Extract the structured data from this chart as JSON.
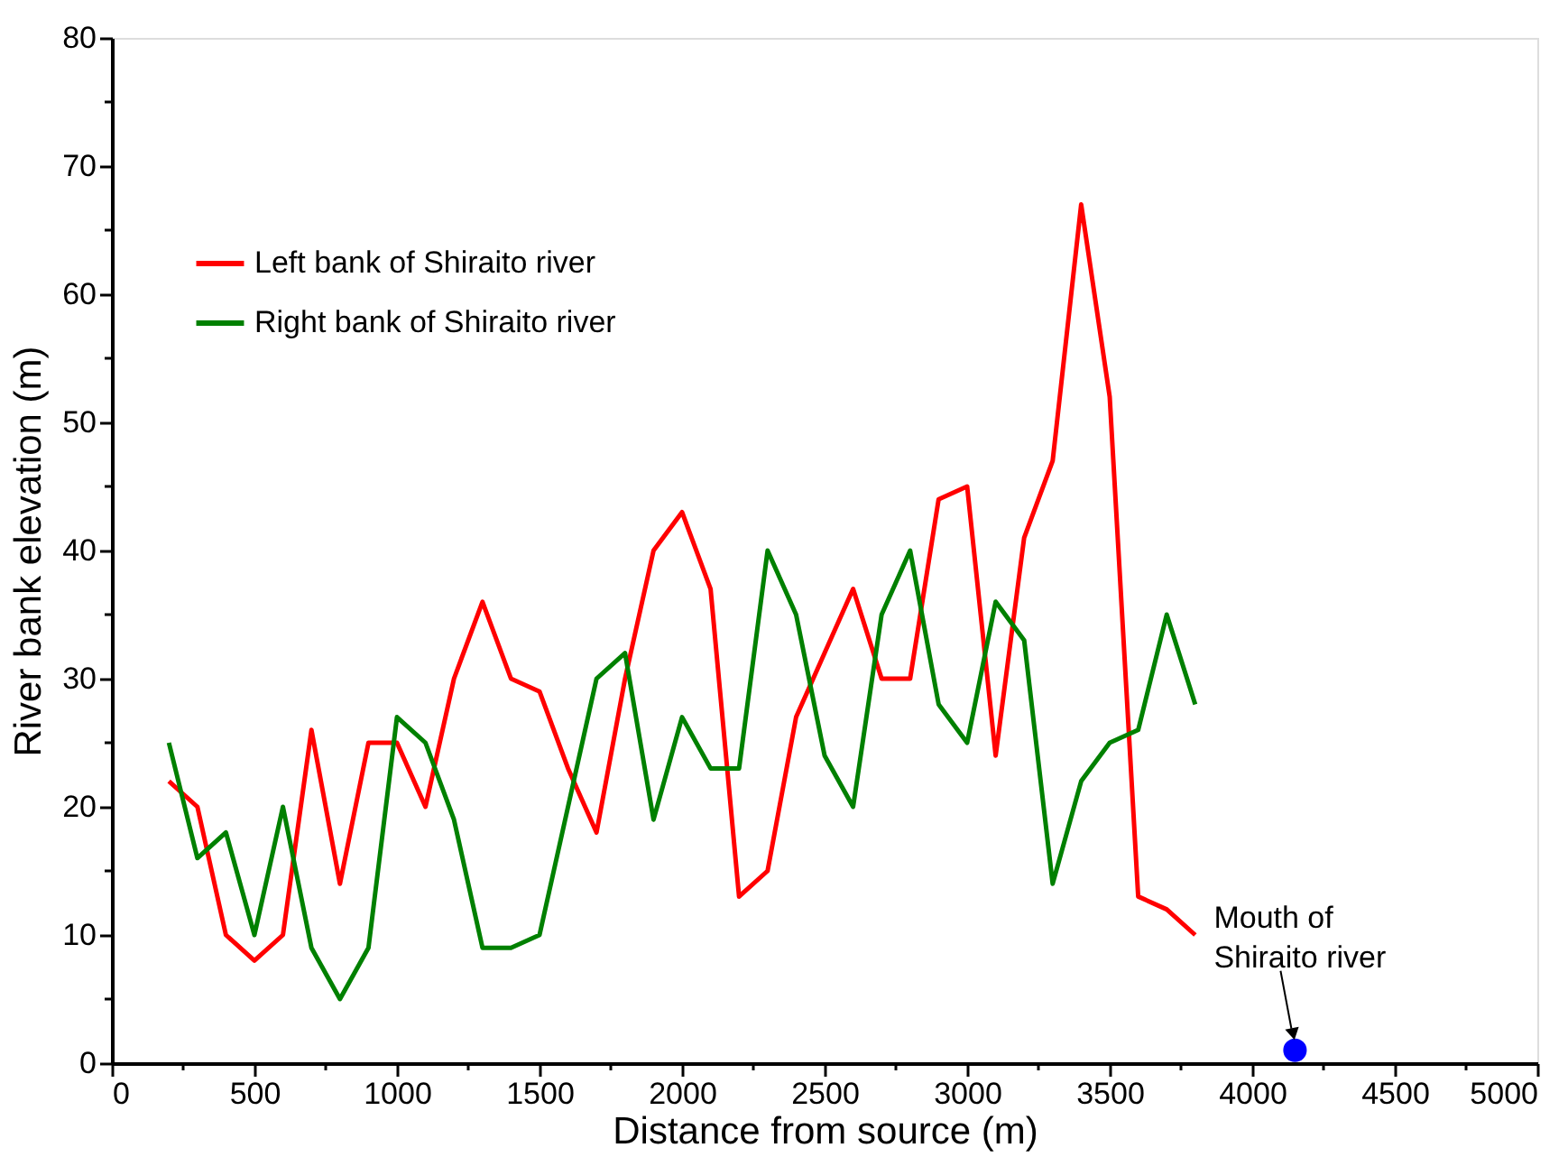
{
  "chart_data": {
    "type": "line",
    "xlabel": "Distance from source (m)",
    "ylabel": "River bank elevation (m)",
    "x": [
      200,
      300,
      400,
      500,
      600,
      700,
      800,
      900,
      1000,
      1100,
      1200,
      1300,
      1400,
      1500,
      1600,
      1700,
      1800,
      1900,
      2000,
      2100,
      2200,
      2300,
      2400,
      2500,
      2600,
      2700,
      2800,
      2900,
      3000,
      3100,
      3200,
      3300,
      3400,
      3500,
      3600,
      3700,
      3800
    ],
    "series": [
      {
        "name": "Left bank of Shiraito river",
        "color": "#ff0000",
        "values": [
          22,
          20,
          10,
          8,
          10,
          26,
          14,
          25,
          25,
          20,
          30,
          36,
          30,
          29,
          23,
          18,
          30,
          40,
          43,
          37,
          13,
          15,
          27,
          32,
          37,
          30,
          30,
          44,
          45,
          24,
          41,
          47,
          67,
          52,
          13,
          12,
          10
        ]
      },
      {
        "name": "Right bank of Shiraito river",
        "color": "#008000",
        "values": [
          25,
          16,
          18,
          10,
          20,
          9,
          5,
          9,
          27,
          25,
          19,
          9,
          9,
          10,
          20,
          30,
          32,
          19,
          27,
          23,
          23,
          40,
          35,
          24,
          20,
          35,
          40,
          28,
          25,
          36,
          33,
          14,
          22,
          25,
          26,
          35,
          28
        ]
      },
      {
        "type": "scatter",
        "color": "#0000ff",
        "marker": "circle",
        "x": [
          4150
        ],
        "values": [
          1
        ]
      }
    ],
    "xlim": [
      0,
      5000
    ],
    "xticks": [
      0,
      {
        "value": 250,
        "label": null
      },
      500,
      {
        "value": 750,
        "label": null
      },
      1000,
      {
        "value": 1250,
        "label": null
      },
      1500,
      {
        "value": 1750,
        "label": null
      },
      2000,
      {
        "value": 2250,
        "label": null
      },
      2500,
      {
        "value": 2750,
        "label": null
      },
      3000,
      {
        "value": 3250,
        "label": null
      },
      3500,
      {
        "value": 3750,
        "label": null
      },
      4000,
      {
        "value": 4250,
        "label": null
      },
      4500,
      {
        "value": 4750,
        "label": null
      },
      5000
    ],
    "ylim": [
      0,
      80
    ],
    "yticks": [
      0,
      {
        "value": 5,
        "label": null
      },
      10,
      {
        "value": 15,
        "label": null
      },
      20,
      {
        "value": 25,
        "label": null
      },
      30,
      {
        "value": 35,
        "label": null
      },
      40,
      {
        "value": 45,
        "label": null
      },
      50,
      {
        "value": 55,
        "label": null
      },
      60,
      {
        "value": 65,
        "label": null
      },
      70,
      {
        "value": 75,
        "label": null
      },
      80
    ],
    "annotations": [
      {
        "text": "Mouth of\nShiraito river",
        "x": 4150,
        "y": 1
      }
    ],
    "legend": "top left",
    "grid": false,
    "marker": "none",
    "line_style": "solid"
  }
}
